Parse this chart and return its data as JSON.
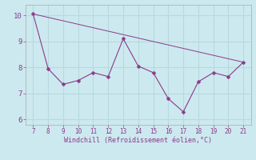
{
  "x": [
    7,
    8,
    9,
    10,
    11,
    12,
    13,
    14,
    15,
    16,
    17,
    18,
    19,
    20,
    21
  ],
  "y": [
    10.05,
    7.95,
    7.35,
    7.5,
    7.8,
    7.65,
    9.1,
    8.05,
    7.8,
    6.8,
    6.3,
    7.45,
    7.8,
    7.65,
    8.2
  ],
  "trend_x": [
    7,
    21
  ],
  "trend_y": [
    10.05,
    8.2
  ],
  "line_color": "#8b3a8b",
  "marker": "D",
  "marker_size": 2.5,
  "background_color": "#cce9ef",
  "grid_color": "#b8d8df",
  "xlabel": "Windchill (Refroidissement éolien,°C)",
  "xlabel_color": "#8b3a8b",
  "tick_color": "#8b3a8b",
  "xlim": [
    6.5,
    21.5
  ],
  "ylim": [
    5.8,
    10.4
  ],
  "yticks": [
    6,
    7,
    8,
    9,
    10
  ],
  "xticks": [
    7,
    8,
    9,
    10,
    11,
    12,
    13,
    14,
    15,
    16,
    17,
    18,
    19,
    20,
    21
  ],
  "spine_color": "#8b3a8b",
  "trend_color": "#8b3a8b"
}
